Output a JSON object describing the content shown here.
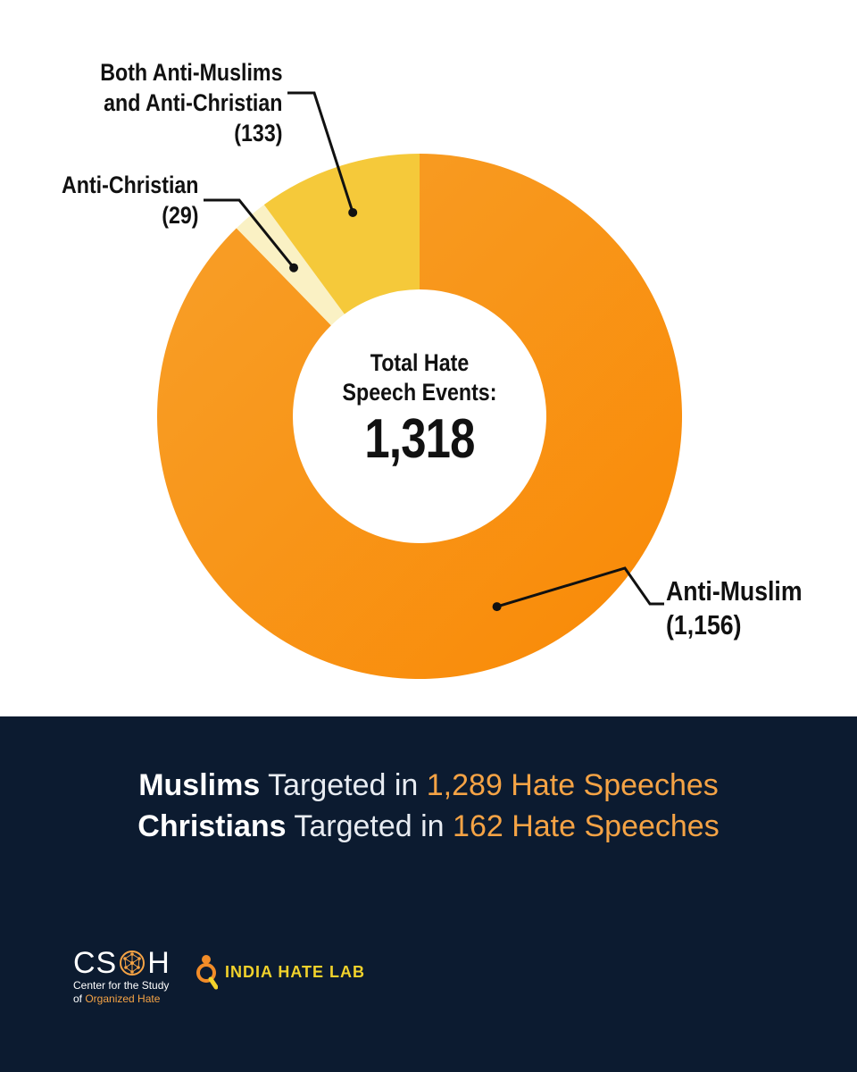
{
  "chart_data": {
    "type": "pie",
    "style": "donut",
    "categories": [
      "Anti-Muslim",
      "Anti-Christian",
      "Both Anti-Muslims and Anti-Christian"
    ],
    "values": [
      1156,
      29,
      133
    ],
    "labels": [
      [
        "Anti-Muslim",
        "(1,156)"
      ],
      [
        "Anti-Christian",
        "(29)"
      ],
      [
        "Both Anti-Muslims",
        "and Anti-Christian",
        "(133)"
      ]
    ],
    "colors": [
      "#fa920f",
      "#faf1c4",
      "#f5c93a"
    ],
    "center": {
      "line1": "Total Hate",
      "line2": "Speech Events:",
      "value": "1,318"
    },
    "legend": "none (callouts)"
  },
  "headlines": [
    {
      "strong": "Muslims",
      "mid": " Targeted in ",
      "accent": "1,289 Hate Speeches"
    },
    {
      "strong": "Christians",
      "mid": " Targeted in ",
      "accent": "162 Hate Speeches"
    }
  ],
  "logos": {
    "csoh": {
      "letters_left": "CS",
      "letters_right": "H",
      "sub_line1": "Center for the Study",
      "sub_line2_prefix": "of ",
      "sub_line2_accent": "Organized Hate",
      "globe_icon": "globe-network-icon"
    },
    "ihl": {
      "text": "INDIA HATE LAB",
      "icon": "magnifier-person-icon"
    }
  },
  "colors": {
    "band": "#0c1b30",
    "accent": "#f5a345",
    "ihl_yellow": "#f2d22b"
  }
}
